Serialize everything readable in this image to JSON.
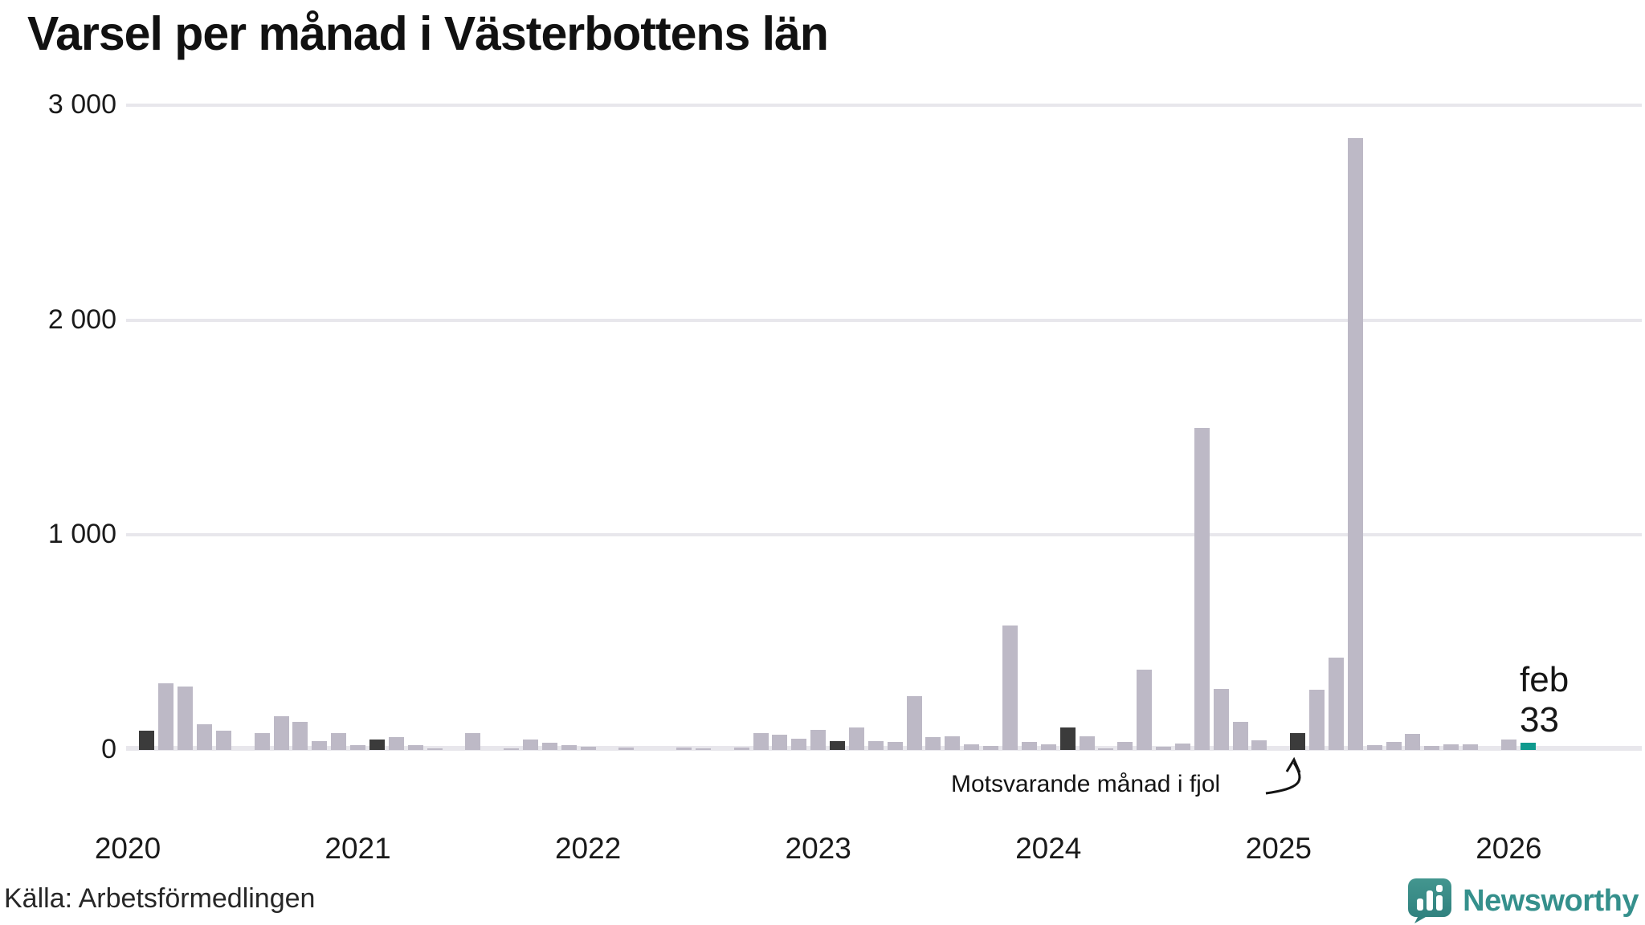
{
  "title": "Varsel per månad i Västerbottens län",
  "source": "Källa: Arbetsförmedlingen",
  "branding": {
    "name": "Newsworthy"
  },
  "annotation": {
    "text": "Motsvarande månad i fjol"
  },
  "latest_label": {
    "month": "feb",
    "value": "33"
  },
  "colors": {
    "bar": "#bdb9c6",
    "bar_same_month_last_year": "#3b3b3b",
    "bar_latest": "#0f9a8e",
    "grid": "#e8e7ec",
    "text": "#1a1a1a",
    "brand_teal": "#35908c"
  },
  "chart_data": {
    "type": "bar",
    "title": "Varsel per månad i Västerbottens län",
    "xlabel": "",
    "ylabel": "",
    "ylim": [
      0,
      3000
    ],
    "grid": "horizontal",
    "legend_position": "none",
    "yticks": [
      {
        "value": 0,
        "label": "0"
      },
      {
        "value": 1000,
        "label": "1 000"
      },
      {
        "value": 2000,
        "label": "2 000"
      },
      {
        "value": 3000,
        "label": "3 000"
      }
    ],
    "year_labels": [
      "2020",
      "2021",
      "2022",
      "2023",
      "2024",
      "2025",
      "2026"
    ],
    "series_monthly": [
      {
        "year": 2020,
        "month": "jan",
        "value": 0
      },
      {
        "year": 2020,
        "month": "feb",
        "value": 90,
        "kind": "same_month_last_year"
      },
      {
        "year": 2020,
        "month": "mar",
        "value": 310
      },
      {
        "year": 2020,
        "month": "apr",
        "value": 295
      },
      {
        "year": 2020,
        "month": "maj",
        "value": 118
      },
      {
        "year": 2020,
        "month": "jun",
        "value": 88
      },
      {
        "year": 2020,
        "month": "jul",
        "value": 0
      },
      {
        "year": 2020,
        "month": "aug",
        "value": 80
      },
      {
        "year": 2020,
        "month": "sep",
        "value": 158
      },
      {
        "year": 2020,
        "month": "okt",
        "value": 131
      },
      {
        "year": 2020,
        "month": "nov",
        "value": 41
      },
      {
        "year": 2020,
        "month": "dec",
        "value": 79
      },
      {
        "year": 2021,
        "month": "jan",
        "value": 23
      },
      {
        "year": 2021,
        "month": "feb",
        "value": 49,
        "kind": "same_month_last_year"
      },
      {
        "year": 2021,
        "month": "mar",
        "value": 60
      },
      {
        "year": 2021,
        "month": "apr",
        "value": 23
      },
      {
        "year": 2021,
        "month": "maj",
        "value": 8
      },
      {
        "year": 2021,
        "month": "jun",
        "value": 0
      },
      {
        "year": 2021,
        "month": "jul",
        "value": 80
      },
      {
        "year": 2021,
        "month": "aug",
        "value": 0
      },
      {
        "year": 2021,
        "month": "sep",
        "value": 8
      },
      {
        "year": 2021,
        "month": "okt",
        "value": 50
      },
      {
        "year": 2021,
        "month": "nov",
        "value": 34
      },
      {
        "year": 2021,
        "month": "dec",
        "value": 23
      },
      {
        "year": 2022,
        "month": "jan",
        "value": 15
      },
      {
        "year": 2022,
        "month": "feb",
        "value": 0,
        "kind": "same_month_last_year"
      },
      {
        "year": 2022,
        "month": "mar",
        "value": 11
      },
      {
        "year": 2022,
        "month": "apr",
        "value": 0
      },
      {
        "year": 2022,
        "month": "maj",
        "value": 0
      },
      {
        "year": 2022,
        "month": "jun",
        "value": 11
      },
      {
        "year": 2022,
        "month": "jul",
        "value": 8
      },
      {
        "year": 2022,
        "month": "aug",
        "value": 0
      },
      {
        "year": 2022,
        "month": "sep",
        "value": 11
      },
      {
        "year": 2022,
        "month": "okt",
        "value": 80
      },
      {
        "year": 2022,
        "month": "nov",
        "value": 72
      },
      {
        "year": 2022,
        "month": "dec",
        "value": 52
      },
      {
        "year": 2023,
        "month": "jan",
        "value": 94
      },
      {
        "year": 2023,
        "month": "feb",
        "value": 41,
        "kind": "same_month_last_year"
      },
      {
        "year": 2023,
        "month": "mar",
        "value": 105
      },
      {
        "year": 2023,
        "month": "apr",
        "value": 41
      },
      {
        "year": 2023,
        "month": "maj",
        "value": 37
      },
      {
        "year": 2023,
        "month": "jun",
        "value": 250
      },
      {
        "year": 2023,
        "month": "jul",
        "value": 60
      },
      {
        "year": 2023,
        "month": "aug",
        "value": 63
      },
      {
        "year": 2023,
        "month": "sep",
        "value": 26
      },
      {
        "year": 2023,
        "month": "okt",
        "value": 19
      },
      {
        "year": 2023,
        "month": "nov",
        "value": 580
      },
      {
        "year": 2023,
        "month": "dec",
        "value": 37
      },
      {
        "year": 2024,
        "month": "jan",
        "value": 26
      },
      {
        "year": 2024,
        "month": "feb",
        "value": 105,
        "kind": "same_month_last_year"
      },
      {
        "year": 2024,
        "month": "mar",
        "value": 63
      },
      {
        "year": 2024,
        "month": "apr",
        "value": 8
      },
      {
        "year": 2024,
        "month": "maj",
        "value": 37
      },
      {
        "year": 2024,
        "month": "jun",
        "value": 375
      },
      {
        "year": 2024,
        "month": "jul",
        "value": 15
      },
      {
        "year": 2024,
        "month": "aug",
        "value": 30
      },
      {
        "year": 2024,
        "month": "sep",
        "value": 1500
      },
      {
        "year": 2024,
        "month": "okt",
        "value": 285
      },
      {
        "year": 2024,
        "month": "nov",
        "value": 130
      },
      {
        "year": 2024,
        "month": "dec",
        "value": 45
      },
      {
        "year": 2025,
        "month": "jan",
        "value": 0
      },
      {
        "year": 2025,
        "month": "feb",
        "value": 78,
        "kind": "same_month_last_year"
      },
      {
        "year": 2025,
        "month": "mar",
        "value": 280
      },
      {
        "year": 2025,
        "month": "apr",
        "value": 430
      },
      {
        "year": 2025,
        "month": "maj",
        "value": 2850
      },
      {
        "year": 2025,
        "month": "jun",
        "value": 22
      },
      {
        "year": 2025,
        "month": "jul",
        "value": 37
      },
      {
        "year": 2025,
        "month": "aug",
        "value": 75
      },
      {
        "year": 2025,
        "month": "sep",
        "value": 19
      },
      {
        "year": 2025,
        "month": "okt",
        "value": 26
      },
      {
        "year": 2025,
        "month": "nov",
        "value": 26
      },
      {
        "year": 2025,
        "month": "dec",
        "value": 0
      },
      {
        "year": 2026,
        "month": "jan",
        "value": 49
      },
      {
        "year": 2026,
        "month": "feb",
        "value": 33,
        "kind": "latest"
      }
    ]
  }
}
